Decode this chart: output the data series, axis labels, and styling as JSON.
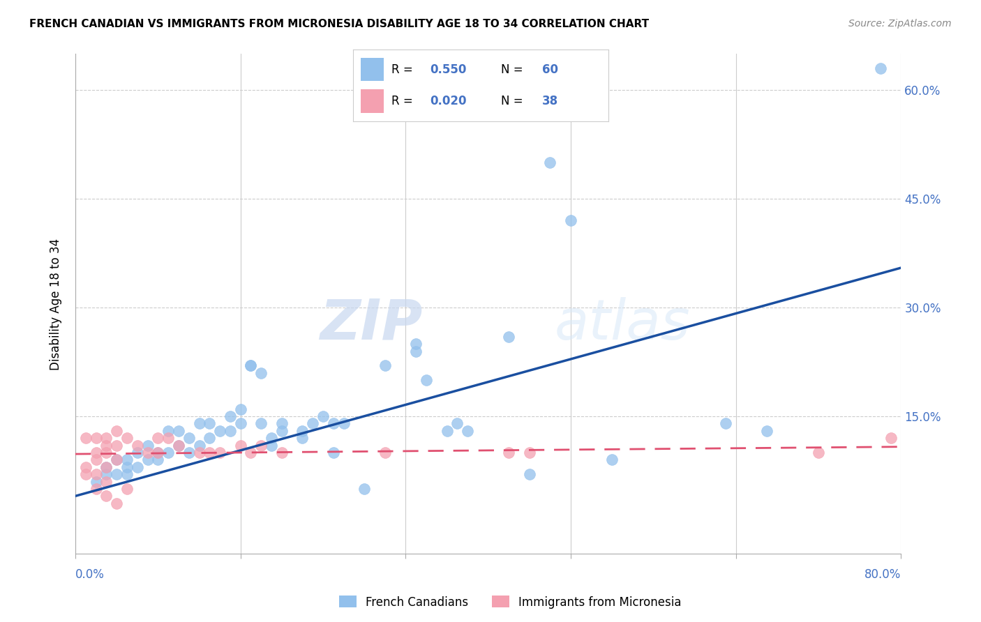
{
  "title": "FRENCH CANADIAN VS IMMIGRANTS FROM MICRONESIA DISABILITY AGE 18 TO 34 CORRELATION CHART",
  "source": "Source: ZipAtlas.com",
  "ylabel": "Disability Age 18 to 34",
  "ytick_labels": [
    "",
    "15.0%",
    "30.0%",
    "45.0%",
    "60.0%"
  ],
  "ytick_values": [
    0.0,
    0.15,
    0.3,
    0.45,
    0.6
  ],
  "xlim": [
    0.0,
    0.8
  ],
  "ylim": [
    -0.04,
    0.65
  ],
  "watermark_zip": "ZIP",
  "watermark_atlas": "atlas",
  "legend_blue_r": "R = 0.550",
  "legend_blue_n": "N = 60",
  "legend_pink_r": "R = 0.020",
  "legend_pink_n": "N = 38",
  "legend_label_blue": "French Canadians",
  "legend_label_pink": "Immigrants from Micronesia",
  "blue_color": "#92C0EC",
  "pink_color": "#F4A0B0",
  "blue_line_color": "#1A4FA0",
  "pink_line_color": "#E05070",
  "blue_scatter": [
    [
      0.02,
      0.06
    ],
    [
      0.03,
      0.08
    ],
    [
      0.03,
      0.07
    ],
    [
      0.04,
      0.09
    ],
    [
      0.04,
      0.07
    ],
    [
      0.05,
      0.08
    ],
    [
      0.05,
      0.09
    ],
    [
      0.05,
      0.07
    ],
    [
      0.06,
      0.1
    ],
    [
      0.06,
      0.08
    ],
    [
      0.07,
      0.09
    ],
    [
      0.07,
      0.11
    ],
    [
      0.08,
      0.1
    ],
    [
      0.08,
      0.09
    ],
    [
      0.09,
      0.13
    ],
    [
      0.09,
      0.1
    ],
    [
      0.1,
      0.11
    ],
    [
      0.1,
      0.13
    ],
    [
      0.11,
      0.12
    ],
    [
      0.11,
      0.1
    ],
    [
      0.12,
      0.14
    ],
    [
      0.12,
      0.11
    ],
    [
      0.13,
      0.14
    ],
    [
      0.13,
      0.12
    ],
    [
      0.14,
      0.13
    ],
    [
      0.15,
      0.15
    ],
    [
      0.15,
      0.13
    ],
    [
      0.16,
      0.16
    ],
    [
      0.16,
      0.14
    ],
    [
      0.17,
      0.22
    ],
    [
      0.17,
      0.22
    ],
    [
      0.18,
      0.21
    ],
    [
      0.18,
      0.14
    ],
    [
      0.19,
      0.11
    ],
    [
      0.19,
      0.12
    ],
    [
      0.2,
      0.14
    ],
    [
      0.2,
      0.13
    ],
    [
      0.22,
      0.13
    ],
    [
      0.22,
      0.12
    ],
    [
      0.23,
      0.14
    ],
    [
      0.24,
      0.15
    ],
    [
      0.25,
      0.14
    ],
    [
      0.25,
      0.1
    ],
    [
      0.26,
      0.14
    ],
    [
      0.28,
      0.05
    ],
    [
      0.3,
      0.22
    ],
    [
      0.33,
      0.24
    ],
    [
      0.33,
      0.25
    ],
    [
      0.34,
      0.2
    ],
    [
      0.36,
      0.13
    ],
    [
      0.37,
      0.14
    ],
    [
      0.38,
      0.13
    ],
    [
      0.42,
      0.26
    ],
    [
      0.44,
      0.07
    ],
    [
      0.46,
      0.5
    ],
    [
      0.48,
      0.42
    ],
    [
      0.52,
      0.09
    ],
    [
      0.63,
      0.14
    ],
    [
      0.67,
      0.13
    ],
    [
      0.78,
      0.63
    ]
  ],
  "pink_scatter": [
    [
      0.01,
      0.12
    ],
    [
      0.01,
      0.08
    ],
    [
      0.01,
      0.07
    ],
    [
      0.02,
      0.12
    ],
    [
      0.02,
      0.1
    ],
    [
      0.02,
      0.09
    ],
    [
      0.02,
      0.07
    ],
    [
      0.02,
      0.05
    ],
    [
      0.03,
      0.12
    ],
    [
      0.03,
      0.11
    ],
    [
      0.03,
      0.1
    ],
    [
      0.03,
      0.08
    ],
    [
      0.03,
      0.06
    ],
    [
      0.03,
      0.04
    ],
    [
      0.04,
      0.13
    ],
    [
      0.04,
      0.11
    ],
    [
      0.04,
      0.09
    ],
    [
      0.04,
      0.03
    ],
    [
      0.05,
      0.12
    ],
    [
      0.05,
      0.05
    ],
    [
      0.06,
      0.11
    ],
    [
      0.07,
      0.1
    ],
    [
      0.08,
      0.12
    ],
    [
      0.08,
      0.1
    ],
    [
      0.09,
      0.12
    ],
    [
      0.1,
      0.11
    ],
    [
      0.12,
      0.1
    ],
    [
      0.13,
      0.1
    ],
    [
      0.14,
      0.1
    ],
    [
      0.16,
      0.11
    ],
    [
      0.17,
      0.1
    ],
    [
      0.18,
      0.11
    ],
    [
      0.2,
      0.1
    ],
    [
      0.3,
      0.1
    ],
    [
      0.42,
      0.1
    ],
    [
      0.44,
      0.1
    ],
    [
      0.72,
      0.1
    ],
    [
      0.79,
      0.12
    ]
  ],
  "blue_trendline": [
    [
      0.0,
      0.04
    ],
    [
      0.8,
      0.355
    ]
  ],
  "pink_trendline": [
    [
      0.0,
      0.098
    ],
    [
      0.8,
      0.108
    ]
  ]
}
